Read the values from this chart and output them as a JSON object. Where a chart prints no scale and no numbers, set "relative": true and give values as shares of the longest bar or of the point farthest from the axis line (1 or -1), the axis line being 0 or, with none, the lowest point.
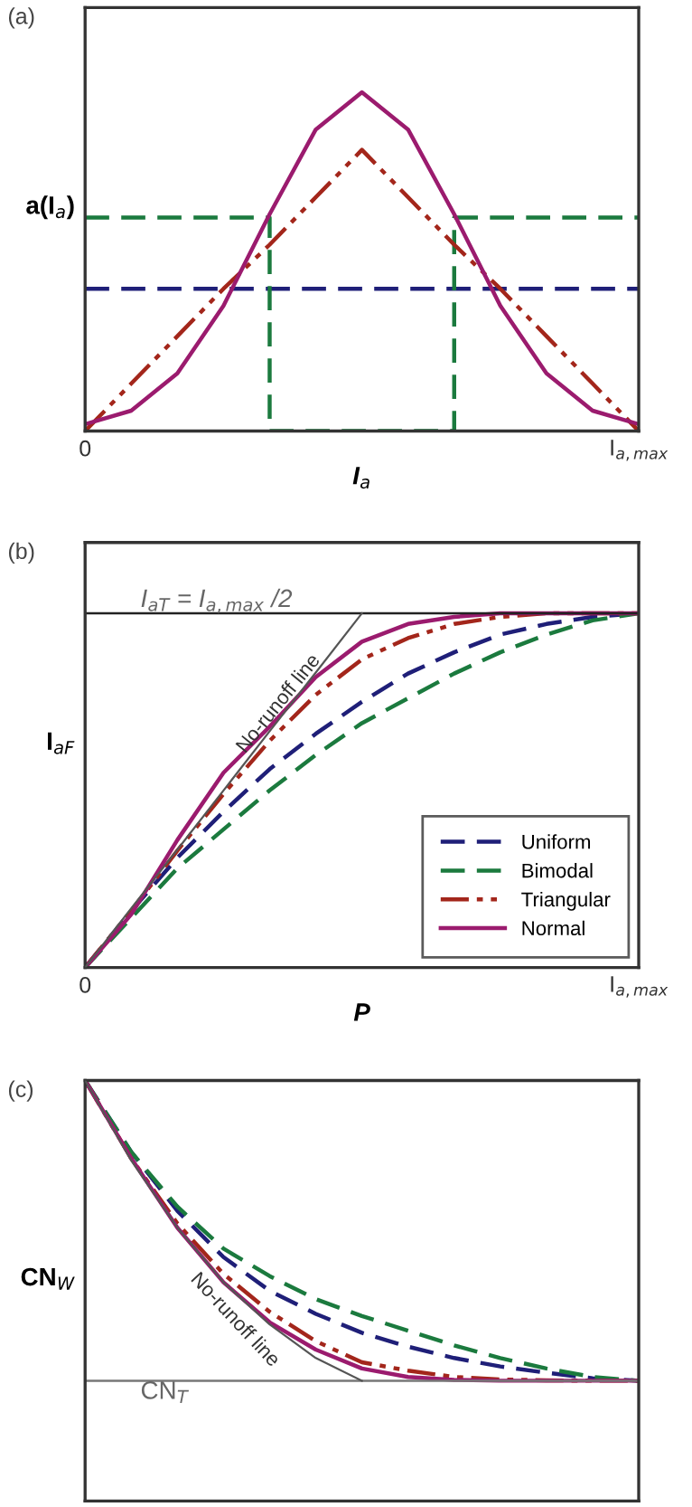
{
  "chart_data": [
    {
      "type": "line",
      "title": "(a)",
      "xlabel": "I$_{a}$",
      "ylabel": "a(I$_{a}$)",
      "relative": true,
      "legend": false,
      "categories": [
        "0",
        null,
        null,
        null,
        null,
        null,
        null,
        null,
        null,
        null,
        null,
        null,
        "I$_{a,max}$"
      ],
      "series": [
        {
          "color": "#1f1f78",
          "line_style": "dashed",
          "values": [
            0.42,
            0.42,
            0.42,
            0.42,
            0.42,
            0.42,
            0.42,
            0.42,
            0.42,
            0.42,
            0.42,
            0.42,
            0.42
          ]
        },
        {
          "type": "step",
          "color": "#1b7a3e",
          "line_style": "dashed",
          "values": [
            0.63,
            0.63,
            0.63,
            0.63,
            0,
            0,
            0,
            0,
            0.63,
            0.63,
            0.63,
            0.63,
            0.63
          ]
        },
        {
          "color": "#a3261b",
          "line_style": "dashdot",
          "values": [
            0,
            0.14,
            0.28,
            0.42,
            0.55,
            0.69,
            0.83,
            0.69,
            0.55,
            0.42,
            0.28,
            0.14,
            0
          ]
        },
        {
          "color": "#9b1b6e",
          "line_style": "solid",
          "values": [
            0.02,
            0.06,
            0.17,
            0.37,
            0.64,
            0.89,
            1,
            0.89,
            0.64,
            0.37,
            0.17,
            0.06,
            0.02
          ]
        }
      ]
    },
    {
      "type": "line",
      "title": "(b)",
      "xlabel": "P",
      "ylabel": "I$_{aF}$",
      "relative": true,
      "legend": "bottom right",
      "categories": [
        "0",
        null,
        null,
        null,
        null,
        null,
        null,
        null,
        null,
        null,
        null,
        null,
        "I$_{a,max}$"
      ],
      "ref_lines": [
        {
          "axis": "y",
          "value": 1,
          "label": "I$_{aT}$ = I$_{a,max}$ /2",
          "color": "#222222"
        }
      ],
      "annotations": [
        "No-runoff line"
      ],
      "series": [
        {
          "color": "#555555",
          "line_style": "solid",
          "values": [
            0,
            0.167,
            0.333,
            0.5,
            0.667,
            0.833,
            1,
            null,
            null,
            null,
            null,
            null,
            null
          ]
        },
        {
          "name": "Uniform",
          "color": "#1f1f78",
          "line_style": "dashed",
          "values": [
            0,
            0.16,
            0.31,
            0.44,
            0.56,
            0.66,
            0.75,
            0.83,
            0.89,
            0.94,
            0.97,
            0.99,
            1
          ]
        },
        {
          "name": "Bimodal",
          "color": "#1b7a3e",
          "line_style": "dashed",
          "values": [
            0,
            0.14,
            0.28,
            0.39,
            0.5,
            0.6,
            0.69,
            0.76,
            0.83,
            0.89,
            0.94,
            0.98,
            1
          ]
        },
        {
          "name": "Triangular",
          "color": "#a3261b",
          "line_style": "dashdot",
          "values": [
            0,
            0.16,
            0.33,
            0.49,
            0.64,
            0.77,
            0.87,
            0.93,
            0.97,
            0.99,
            1,
            1,
            1
          ]
        },
        {
          "name": "Normal",
          "color": "#9b1b6e",
          "line_style": "solid",
          "values": [
            0,
            0.15,
            0.36,
            0.55,
            0.68,
            0.82,
            0.92,
            0.97,
            0.99,
            1,
            1,
            1,
            1
          ]
        }
      ]
    },
    {
      "type": "line",
      "title": "(c)",
      "ylabel": "CN$_{W}$",
      "relative": true,
      "legend": false,
      "categories": [
        null,
        null,
        null,
        null,
        null,
        null,
        null,
        null,
        null,
        null,
        null,
        null,
        null
      ],
      "ref_lines": [
        {
          "axis": "y",
          "value": 0.286,
          "label": "CN$_{T}$",
          "color": "#777777"
        }
      ],
      "annotations": [
        "No-runoff line"
      ],
      "series": [
        {
          "color": "#555555",
          "line_style": "solid",
          "values": [
            1,
            0.81,
            0.65,
            0.52,
            0.42,
            0.34,
            0.286,
            null,
            null,
            null,
            null,
            null,
            null
          ]
        },
        {
          "color": "#1f1f78",
          "line_style": "dashed",
          "values": [
            1,
            0.83,
            0.69,
            0.58,
            0.5,
            0.445,
            0.4,
            0.367,
            0.34,
            0.32,
            0.305,
            0.292,
            0.286
          ]
        },
        {
          "color": "#1b7a3e",
          "line_style": "dashed",
          "values": [
            1,
            0.83,
            0.7,
            0.6,
            0.535,
            0.48,
            0.44,
            0.405,
            0.37,
            0.34,
            0.315,
            0.295,
            0.286
          ]
        },
        {
          "color": "#a3261b",
          "line_style": "dashdot",
          "values": [
            1,
            0.815,
            0.66,
            0.54,
            0.45,
            0.38,
            0.33,
            0.31,
            0.295,
            0.289,
            0.287,
            0.286,
            0.286
          ]
        },
        {
          "color": "#9b1b6e",
          "line_style": "solid",
          "values": [
            1,
            0.815,
            0.65,
            0.52,
            0.425,
            0.36,
            0.315,
            0.295,
            0.288,
            0.286,
            0.286,
            0.286,
            0.286
          ]
        }
      ]
    }
  ]
}
